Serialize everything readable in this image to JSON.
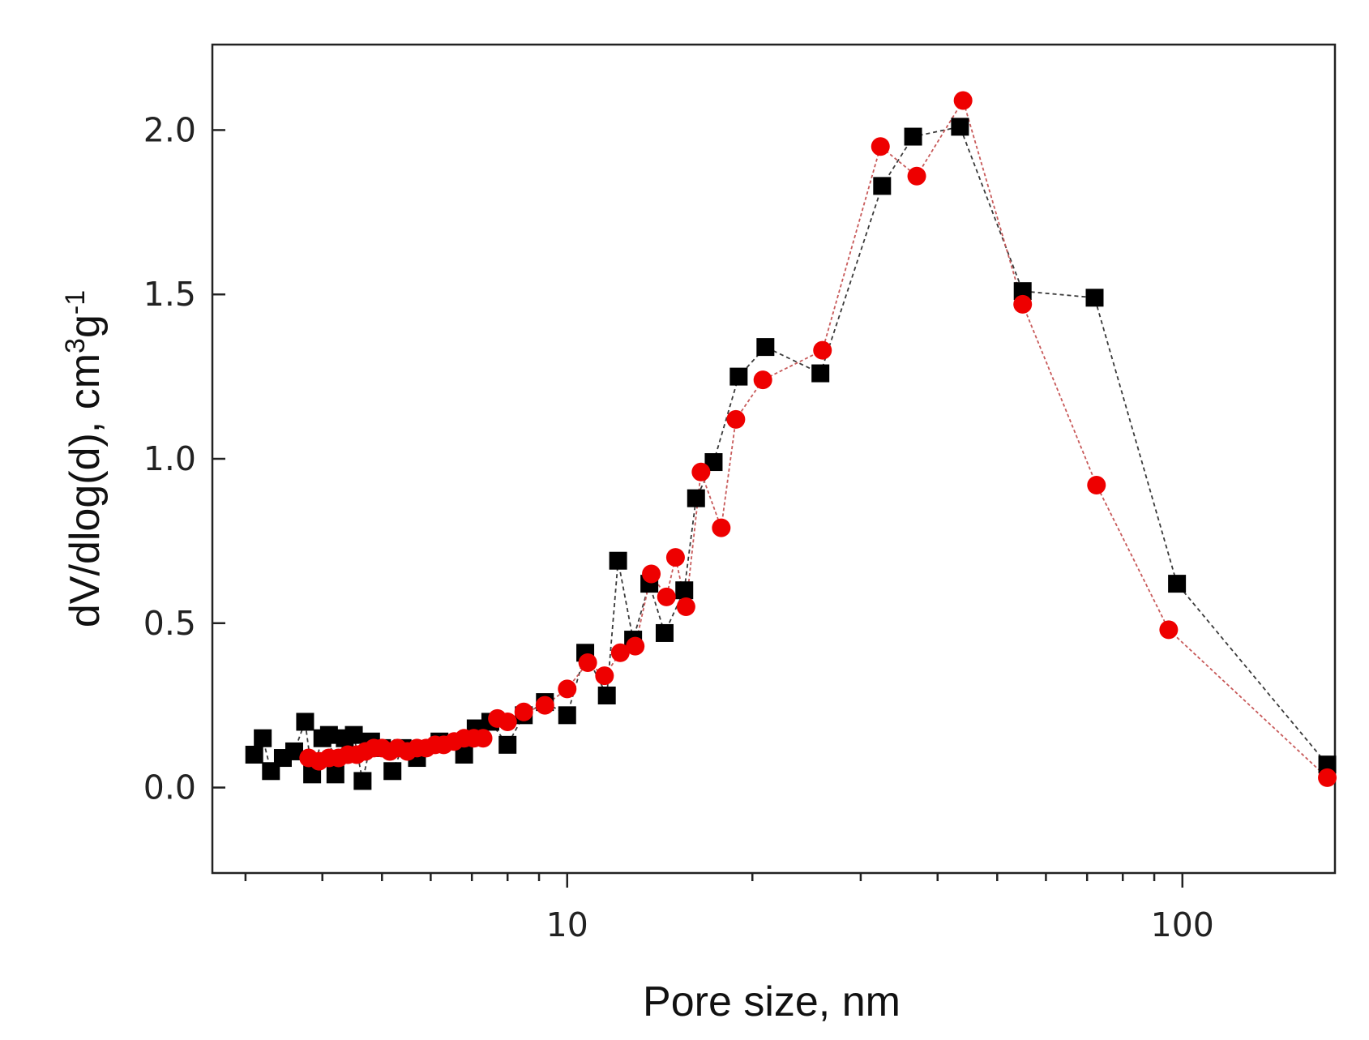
{
  "chart_data": {
    "type": "scatter",
    "title": "",
    "xlabel": "Pore size, nm",
    "ylabel": "dV/dlog(d), cm",
    "ylabel_sup1": "3",
    "ylabel_mid": "g",
    "ylabel_sup2": "-1",
    "xscale": "log",
    "xlim": [
      2.65,
      177
    ],
    "ylim": [
      -0.26,
      2.26
    ],
    "xticks": [
      10,
      100
    ],
    "xtick_labels": [
      "10",
      "100"
    ],
    "yticks": [
      0.0,
      0.5,
      1.0,
      1.5,
      2.0
    ],
    "ytick_labels": [
      "0.0",
      "0.5",
      "1.0",
      "1.5",
      "2.0"
    ],
    "series": [
      {
        "name": "black squares",
        "color": "#000000",
        "line_color": "#3a3a3a",
        "marker": "square",
        "points": [
          [
            3.1,
            0.1
          ],
          [
            3.2,
            0.15
          ],
          [
            3.3,
            0.05
          ],
          [
            3.45,
            0.09
          ],
          [
            3.6,
            0.11
          ],
          [
            3.75,
            0.2
          ],
          [
            3.85,
            0.04
          ],
          [
            4.0,
            0.15
          ],
          [
            4.1,
            0.16
          ],
          [
            4.2,
            0.04
          ],
          [
            4.35,
            0.15
          ],
          [
            4.5,
            0.16
          ],
          [
            4.65,
            0.02
          ],
          [
            4.8,
            0.14
          ],
          [
            5.0,
            0.12
          ],
          [
            5.2,
            0.05
          ],
          [
            5.4,
            0.12
          ],
          [
            5.7,
            0.09
          ],
          [
            6.2,
            0.14
          ],
          [
            6.8,
            0.1
          ],
          [
            7.1,
            0.18
          ],
          [
            7.5,
            0.2
          ],
          [
            8.0,
            0.13
          ],
          [
            8.5,
            0.22
          ],
          [
            9.2,
            0.26
          ],
          [
            10.0,
            0.22
          ],
          [
            10.7,
            0.41
          ],
          [
            11.6,
            0.28
          ],
          [
            12.1,
            0.69
          ],
          [
            12.8,
            0.45
          ],
          [
            13.6,
            0.62
          ],
          [
            14.4,
            0.47
          ],
          [
            15.5,
            0.6
          ],
          [
            16.2,
            0.88
          ],
          [
            17.3,
            0.99
          ],
          [
            19.0,
            1.25
          ],
          [
            21.0,
            1.34
          ],
          [
            25.8,
            1.26
          ],
          [
            32.5,
            1.83
          ],
          [
            36.5,
            1.98
          ],
          [
            43.5,
            2.01
          ],
          [
            55.0,
            1.51
          ],
          [
            72.0,
            1.49
          ],
          [
            98.0,
            0.62
          ],
          [
            172.0,
            0.07
          ]
        ]
      },
      {
        "name": "red circles",
        "color": "#ee0000",
        "line_color": "#c85a5a",
        "marker": "circle",
        "points": [
          [
            3.8,
            0.09
          ],
          [
            3.95,
            0.08
          ],
          [
            4.1,
            0.09
          ],
          [
            4.25,
            0.09
          ],
          [
            4.4,
            0.1
          ],
          [
            4.55,
            0.1
          ],
          [
            4.7,
            0.11
          ],
          [
            4.85,
            0.12
          ],
          [
            5.0,
            0.12
          ],
          [
            5.15,
            0.11
          ],
          [
            5.3,
            0.12
          ],
          [
            5.5,
            0.11
          ],
          [
            5.7,
            0.12
          ],
          [
            5.9,
            0.12
          ],
          [
            6.1,
            0.13
          ],
          [
            6.3,
            0.13
          ],
          [
            6.55,
            0.14
          ],
          [
            6.8,
            0.15
          ],
          [
            7.05,
            0.15
          ],
          [
            7.3,
            0.15
          ],
          [
            7.7,
            0.21
          ],
          [
            8.0,
            0.2
          ],
          [
            8.5,
            0.23
          ],
          [
            9.2,
            0.25
          ],
          [
            10.0,
            0.3
          ],
          [
            10.8,
            0.38
          ],
          [
            11.5,
            0.34
          ],
          [
            12.2,
            0.41
          ],
          [
            12.9,
            0.43
          ],
          [
            13.7,
            0.65
          ],
          [
            14.5,
            0.58
          ],
          [
            15.0,
            0.7
          ],
          [
            15.6,
            0.55
          ],
          [
            16.5,
            0.96
          ],
          [
            17.8,
            0.79
          ],
          [
            18.8,
            1.12
          ],
          [
            20.8,
            1.24
          ],
          [
            26.0,
            1.33
          ],
          [
            32.3,
            1.95
          ],
          [
            37.0,
            1.86
          ],
          [
            44.0,
            2.09
          ],
          [
            55.0,
            1.47
          ],
          [
            72.5,
            0.92
          ],
          [
            95.0,
            0.48
          ],
          [
            172.0,
            0.03
          ]
        ]
      }
    ]
  }
}
